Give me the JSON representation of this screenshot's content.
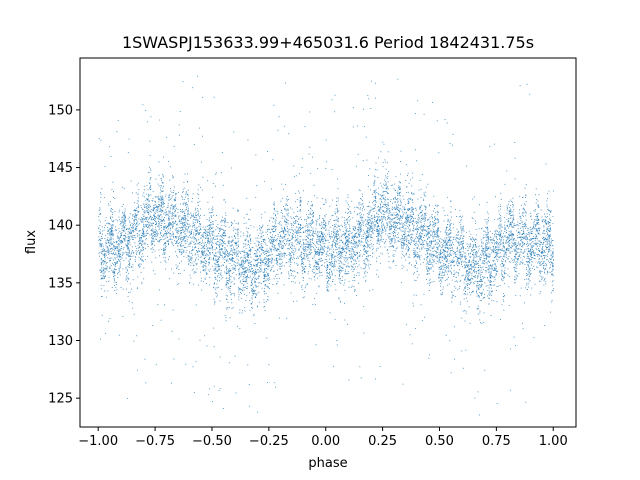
{
  "chart_data": {
    "type": "scatter",
    "title": "1SWASPJ153633.99+465031.6 Period 1842431.75s",
    "xlabel": "phase",
    "ylabel": "flux",
    "xlim": [
      -1.08,
      1.1
    ],
    "ylim": [
      122.5,
      154.5
    ],
    "xticks": [
      -1.0,
      -0.75,
      -0.5,
      -0.25,
      0.0,
      0.25,
      0.5,
      0.75,
      1.0
    ],
    "xtick_labels": [
      "−1.00",
      "−0.75",
      "−0.50",
      "−0.25",
      "0.00",
      "0.25",
      "0.50",
      "0.75",
      "1.00"
    ],
    "yticks": [
      125,
      130,
      135,
      140,
      145,
      150
    ],
    "ytick_labels": [
      "125",
      "130",
      "135",
      "140",
      "145",
      "150"
    ],
    "grid": false,
    "marker_color": "#1f77b4",
    "series": [
      {
        "point_count": 9000,
        "phase_range": [
          -1.0,
          1.0
        ],
        "flux_median": 138.5,
        "flux_typical_range": [
          133.5,
          144.5
        ],
        "flux_full_range": [
          123.5,
          153.0
        ],
        "profile": {
          "phase": [
            0.0,
            0.1,
            0.2,
            0.23,
            0.3,
            0.4,
            0.5,
            0.6,
            0.68,
            0.75,
            0.8,
            0.9,
            1.0
          ],
          "flux": [
            138.0,
            138.3,
            139.8,
            141.0,
            140.5,
            139.5,
            138.0,
            137.0,
            136.3,
            137.5,
            138.8,
            138.5,
            138.0
          ]
        }
      }
    ]
  }
}
